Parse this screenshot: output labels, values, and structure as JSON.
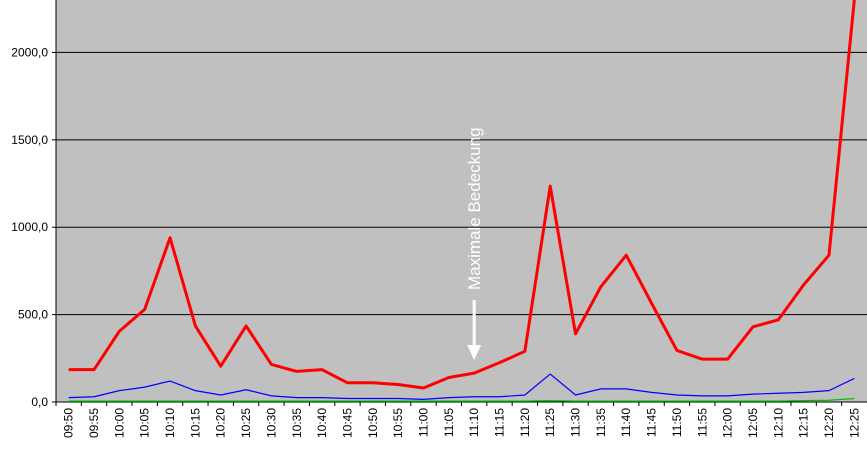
{
  "chart_data": {
    "type": "line",
    "annotation": "Maximale Bedeckung",
    "categories": [
      "09:50",
      "09:55",
      "10:00",
      "10:05",
      "10:10",
      "10:15",
      "10:20",
      "10:25",
      "10:30",
      "10:35",
      "10:40",
      "10:45",
      "10:50",
      "10:55",
      "11:00",
      "11:05",
      "11:10",
      "11:15",
      "11:20",
      "11:25",
      "11:30",
      "11:35",
      "11:40",
      "11:45",
      "11:50",
      "11:55",
      "12:00",
      "12:05",
      "12:10",
      "12:15",
      "12:20",
      "12:25"
    ],
    "series": [
      {
        "color": "#ff0000",
        "values": [
          185,
          185,
          405,
          530,
          940,
          435,
          205,
          435,
          215,
          175,
          185,
          110,
          110,
          100,
          80,
          140,
          165,
          225,
          290,
          1235,
          390,
          660,
          840,
          565,
          295,
          245,
          245,
          430,
          470,
          670,
          840,
          2300
        ]
      },
      {
        "color": "#0000ff",
        "values": [
          25,
          30,
          65,
          85,
          120,
          65,
          40,
          70,
          35,
          25,
          25,
          20,
          20,
          20,
          15,
          25,
          30,
          30,
          40,
          160,
          40,
          75,
          75,
          55,
          40,
          35,
          35,
          45,
          50,
          55,
          65,
          135
        ]
      },
      {
        "color": "#00c000",
        "values": [
          5,
          5,
          5,
          5,
          5,
          5,
          5,
          5,
          5,
          5,
          5,
          5,
          5,
          5,
          5,
          5,
          5,
          5,
          5,
          8,
          5,
          5,
          5,
          5,
          5,
          5,
          5,
          5,
          5,
          8,
          10,
          20
        ]
      }
    ],
    "ylim": [
      0,
      2300
    ],
    "yticks": [
      {
        "value": 0,
        "label": "0,0"
      },
      {
        "value": 500,
        "label": "500,0"
      },
      {
        "value": 1000,
        "label": "1000,0"
      },
      {
        "value": 1500,
        "label": "1500,0"
      },
      {
        "value": 2000,
        "label": "2000,0"
      }
    ],
    "grid": true
  }
}
